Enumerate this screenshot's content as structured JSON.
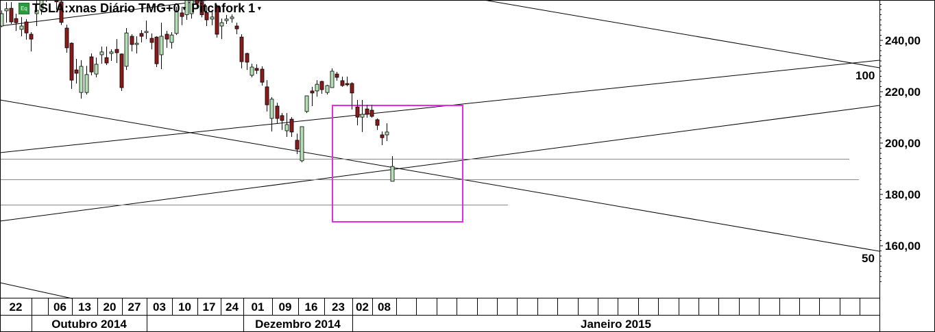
{
  "header": {
    "icon": "eq-badge-icon",
    "icon_label": "Eq",
    "symbol_title": "TSLA:xnas Diário TMG+0",
    "study_title": "Pitchfork 1",
    "dropdown_glyph": "▾"
  },
  "pitchfork_levels": {
    "upper": "100",
    "lower": "50"
  },
  "colors": {
    "up": "#b5e0b5",
    "down": "#8b1a1a",
    "outline": "#000000",
    "highlight_box": "#e62be6",
    "trend_line": "#000000",
    "horizontal_line": "#888888"
  },
  "chart_data": {
    "type": "candlestick",
    "title": "TSLA:xnas Diário TMG+0",
    "y_axis": {
      "position": "right",
      "ticks": [
        "240,00",
        "220,00",
        "200,00",
        "180,00",
        "160,00"
      ],
      "tick_values": [
        240,
        220,
        200,
        180,
        160
      ]
    },
    "x_axis": {
      "day_labels": [
        "22",
        "",
        "06",
        "13",
        "20",
        "27",
        "03",
        "10",
        "17",
        "24",
        "01",
        "09",
        "16",
        "23",
        "02",
        "08",
        "",
        "",
        "",
        "",
        "",
        "",
        "",
        "",
        "",
        "",
        "",
        "",
        "",
        "",
        "",
        "",
        "",
        "",
        "",
        "",
        "",
        "",
        "",
        ""
      ],
      "month_labels": [
        "",
        "Outubro 2014",
        "",
        "Dezembro 2014",
        "Janeiro 2015"
      ]
    },
    "candles_ohlc": [
      [
        245.6,
        251.7,
        245.1,
        250.4
      ],
      [
        251.5,
        254.9,
        246.9,
        252.3
      ],
      [
        252.5,
        254.9,
        246.4,
        247.2
      ],
      [
        248.5,
        250.4,
        243.7,
        246.9
      ],
      [
        244.3,
        249.1,
        241.6,
        245.6
      ],
      [
        247.2,
        248.3,
        240.3,
        242.9
      ],
      [
        242.4,
        243.2,
        235.7,
        240.5
      ],
      [
        250.4,
        255.7,
        245.6,
        251.7
      ],
      [
        252,
        262,
        250,
        258
      ],
      [
        258,
        264,
        255,
        261
      ],
      [
        261,
        263,
        256,
        257
      ],
      [
        257,
        260,
        252,
        255
      ],
      [
        255,
        258,
        246,
        247
      ],
      [
        244.8,
        246.1,
        235.2,
        237.1
      ],
      [
        238.9,
        239.2,
        221.1,
        224.5
      ],
      [
        228.5,
        232.8,
        223.2,
        227.2
      ],
      [
        219.7,
        232.3,
        217.3,
        229.9
      ],
      [
        219.7,
        230.1,
        218.9,
        226.7
      ],
      [
        233.6,
        234.9,
        226.4,
        227.7
      ],
      [
        226.9,
        233.3,
        225.6,
        230.7
      ],
      [
        234.4,
        237.6,
        230.9,
        235.5
      ],
      [
        233.3,
        237.6,
        230.4,
        231.2
      ],
      [
        234.9,
        236.5,
        232.0,
        235.5
      ],
      [
        236.5,
        240.5,
        231.2,
        235.2
      ],
      [
        234.7,
        234.9,
        220.3,
        221.6
      ],
      [
        229.9,
        244.8,
        228.5,
        242.9
      ],
      [
        241.6,
        242.4,
        235.7,
        238.4
      ],
      [
        238.4,
        241.6,
        234.9,
        238.9
      ],
      [
        242.7,
        244.0,
        239.2,
        241.6
      ],
      [
        243.0,
        247.7,
        240.5,
        243.5
      ],
      [
        240.8,
        242.7,
        236.5,
        239.2
      ],
      [
        241.3,
        241.6,
        229.6,
        230.9
      ],
      [
        234.4,
        246.9,
        228.8,
        241.6
      ],
      [
        242.4,
        243.7,
        237.1,
        240.5
      ],
      [
        239.2,
        243.2,
        236.8,
        242.1
      ],
      [
        242.7,
        253.1,
        242.1,
        251.2
      ],
      [
        250.7,
        253.1,
        245.9,
        249.3
      ],
      [
        250,
        258,
        248,
        256
      ],
      [
        250.4,
        258,
        248.5,
        256.5
      ],
      [
        258,
        259,
        253,
        254.4
      ],
      [
        255,
        258,
        249,
        250
      ],
      [
        250.9,
        253.1,
        245.6,
        248.0
      ],
      [
        248.3,
        251.2,
        245.9,
        249.1
      ],
      [
        253.1,
        253.9,
        241.1,
        242.4
      ],
      [
        245.6,
        248.5,
        240.5,
        246.9
      ],
      [
        247.7,
        249.9,
        246.4,
        248.3
      ],
      [
        248.5,
        250.1,
        246.9,
        249.1
      ],
      [
        245.6,
        246.9,
        242.4,
        244.5
      ],
      [
        241.3,
        242.4,
        229.1,
        231.7
      ],
      [
        234.9,
        235.2,
        228.5,
        231.5
      ],
      [
        226.4,
        230.9,
        225.6,
        229.6
      ],
      [
        229.1,
        230.7,
        226.9,
        228.3
      ],
      [
        228.8,
        229.9,
        222.4,
        223.7
      ],
      [
        221.9,
        224.5,
        212.3,
        214.9
      ],
      [
        209.6,
        217.9,
        204.5,
        217.1
      ],
      [
        214.4,
        215.7,
        207.7,
        209.6
      ],
      [
        210.7,
        211.7,
        205.1,
        208.8
      ],
      [
        204.8,
        211.7,
        202.4,
        207.2
      ],
      [
        209.3,
        210.1,
        202.4,
        204.3
      ],
      [
        201.1,
        203.7,
        195.7,
        197.6
      ],
      [
        193.1,
        206.4,
        192.5,
        206.4
      ],
      [
        212.3,
        218.4,
        211.7,
        218.4
      ],
      [
        220.3,
        221.9,
        214.4,
        219.5
      ],
      [
        220.3,
        224.5,
        218.1,
        222.9
      ],
      [
        224.0,
        224.3,
        219.2,
        220.8
      ],
      [
        219.7,
        222.7,
        218.9,
        222.4
      ],
      [
        221.6,
        229.1,
        221.6,
        228.0
      ],
      [
        226.9,
        227.7,
        224.3,
        225.6
      ],
      [
        224.3,
        225.9,
        221.9,
        222.4
      ],
      [
        223.2,
        225.9,
        222.1,
        222.7
      ],
      [
        223.2,
        223.7,
        213.1,
        219.5
      ],
      [
        214.1,
        216.8,
        206.9,
        210.1
      ],
      [
        210.1,
        216.8,
        204.3,
        211.2
      ],
      [
        213.3,
        214.9,
        209.9,
        211.2
      ],
      [
        212.8,
        214.9,
        209.9,
        210.4
      ],
      [
        209.1,
        209.6,
        205.1,
        206.9
      ],
      [
        203.2,
        204.5,
        199.2,
        202.1
      ],
      [
        203.2,
        207.7,
        200.8,
        204.3
      ],
      [
        185.1,
        194.9,
        185.1,
        190.9
      ]
    ],
    "grid": false,
    "legend": "none"
  }
}
